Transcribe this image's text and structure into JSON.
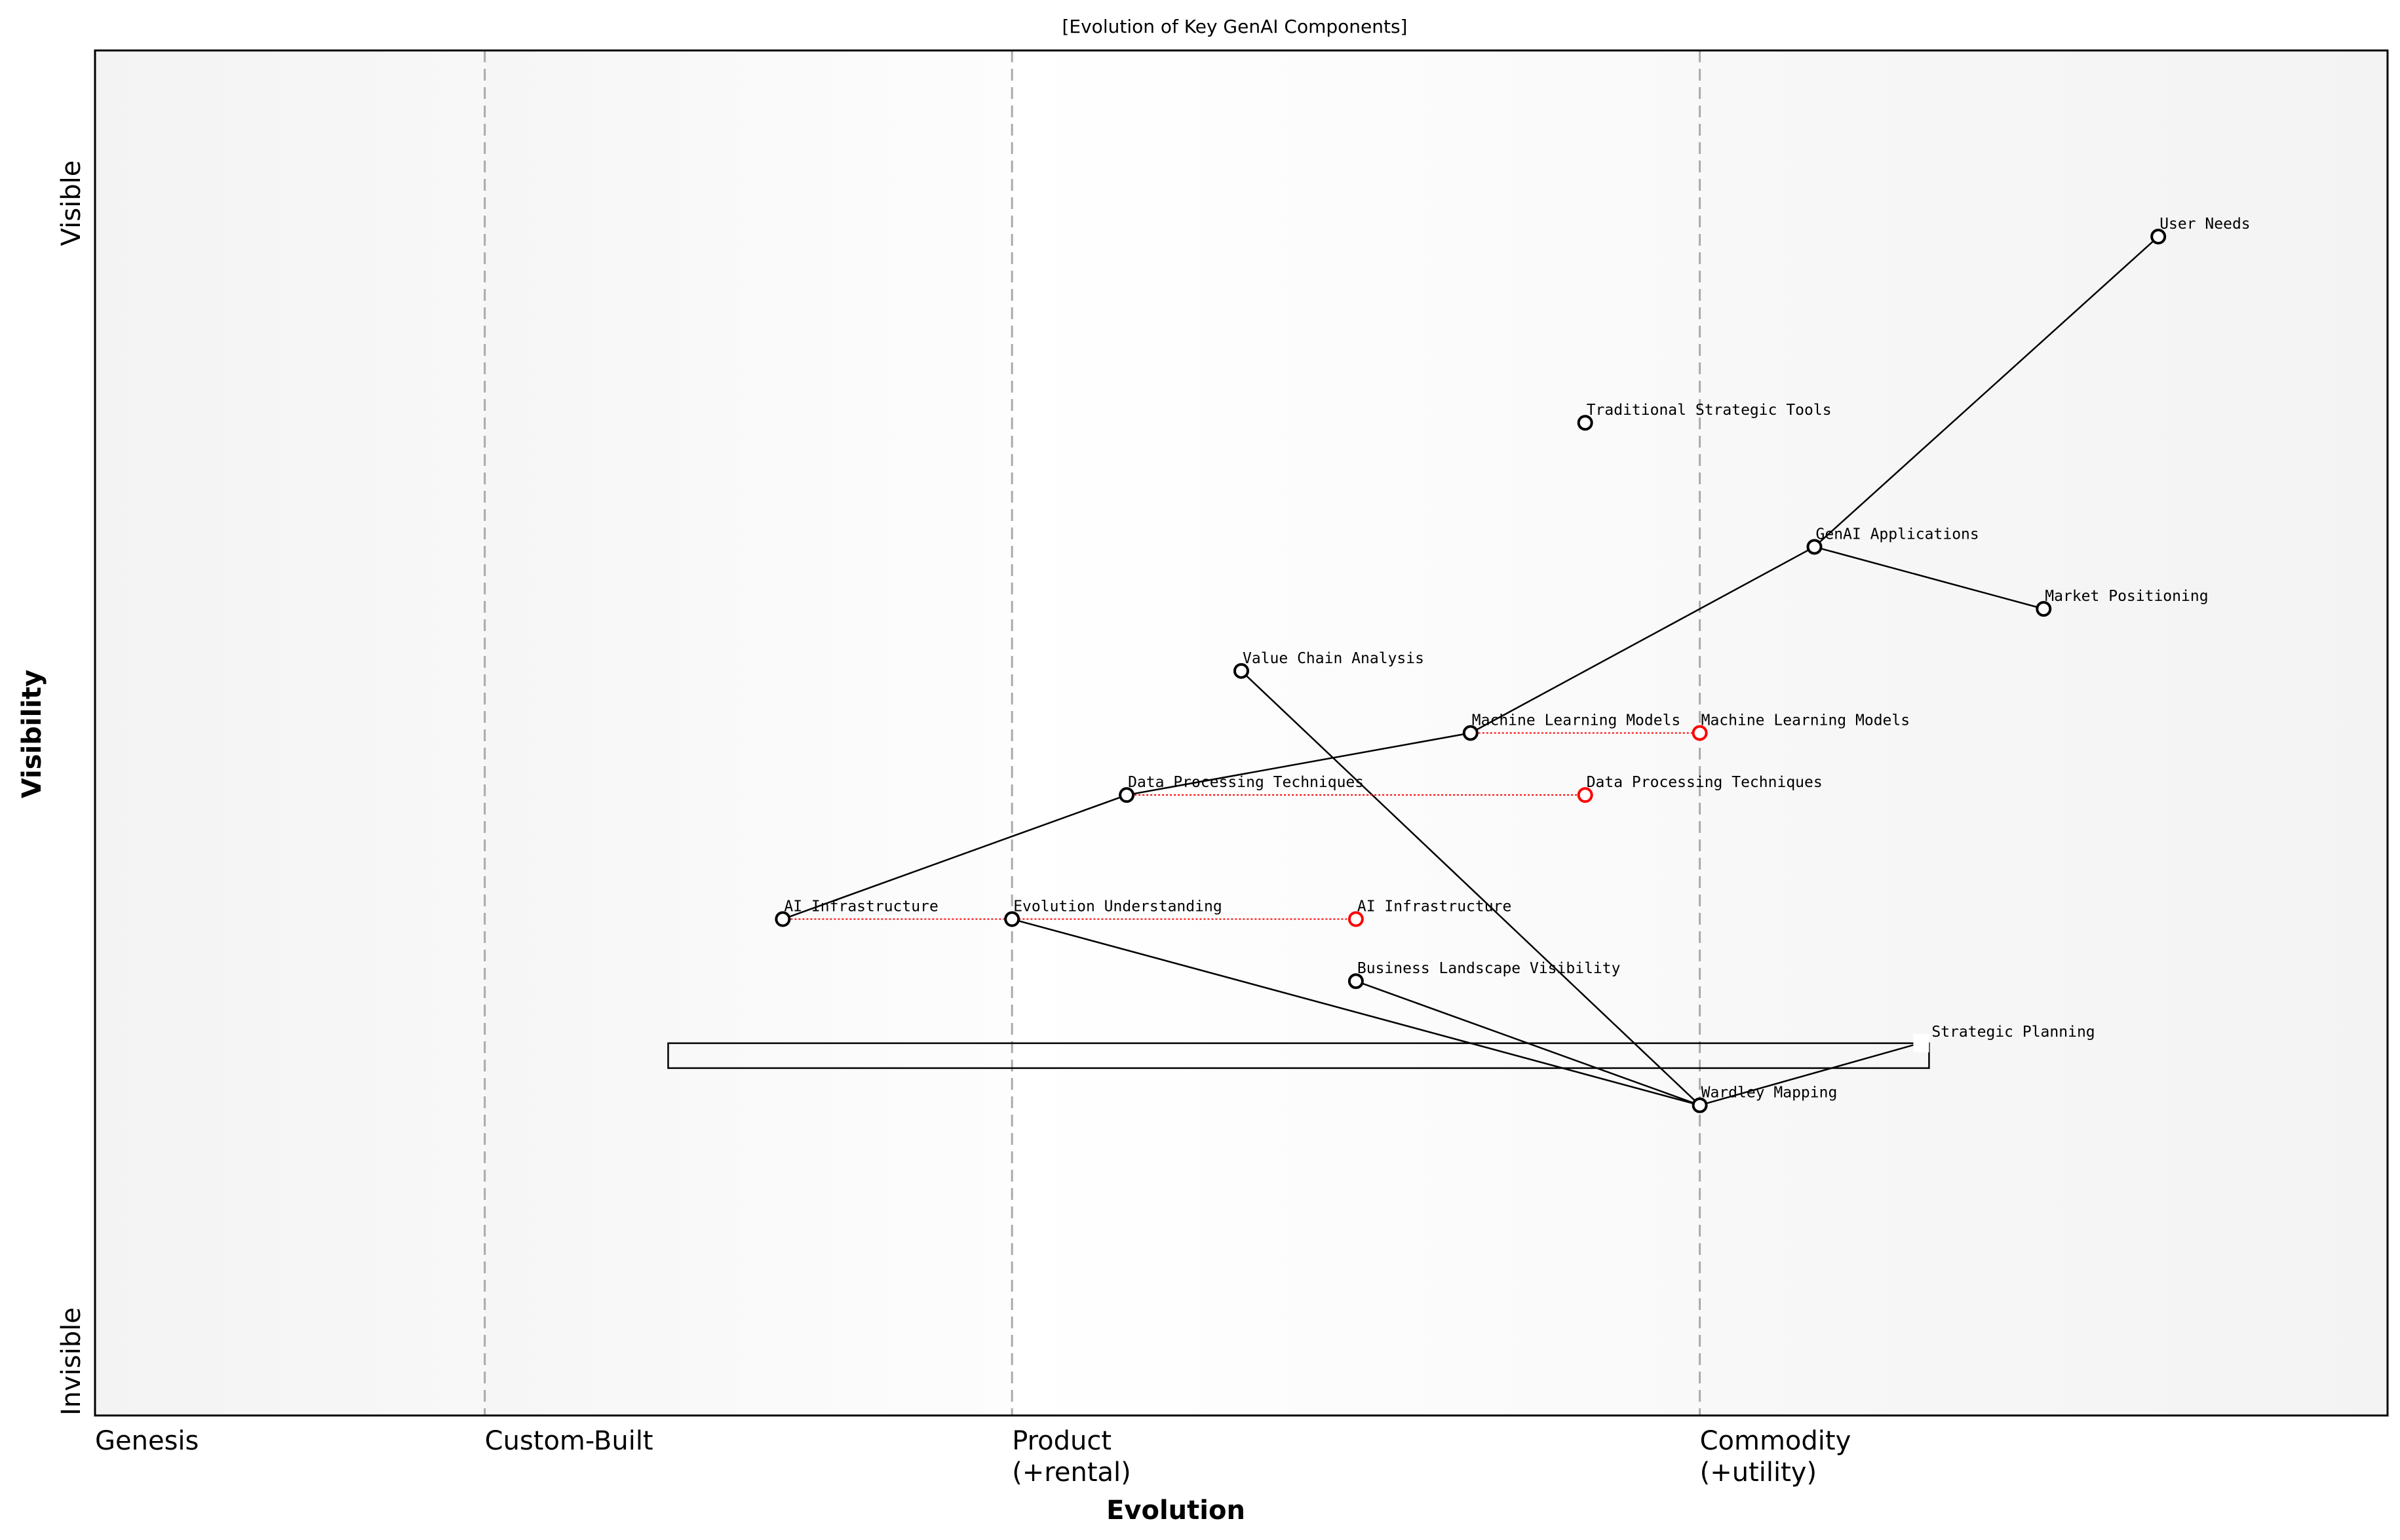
{
  "chart_data": {
    "type": "wardley-map",
    "title": "[Evolution of Key GenAI Components]",
    "xlabel": "Evolution",
    "ylabel": "Visibility",
    "xlim": [
      0,
      1
    ],
    "ylim": [
      0,
      1.1
    ],
    "y_ticks": [
      {
        "label": "Invisible",
        "value": 0
      },
      {
        "label": "Visible",
        "value": 1
      }
    ],
    "x_stages": [
      {
        "label": "Genesis",
        "value": 0
      },
      {
        "label": "Custom-Built",
        "value": 0.17
      },
      {
        "label": "Product\n(+rental)",
        "value": 0.4
      },
      {
        "label": "Commodity\n(+utility)",
        "value": 0.7
      }
    ],
    "components": [
      {
        "name": "User Needs",
        "evolution": 0.9,
        "visibility": 0.95
      },
      {
        "name": "Traditional Strategic Tools",
        "evolution": 0.65,
        "visibility": 0.8
      },
      {
        "name": "GenAI Applications",
        "evolution": 0.75,
        "visibility": 0.7
      },
      {
        "name": "Market Positioning",
        "evolution": 0.85,
        "visibility": 0.65
      },
      {
        "name": "Value Chain Analysis",
        "evolution": 0.5,
        "visibility": 0.6
      },
      {
        "name": "Machine Learning Models",
        "evolution": 0.6,
        "visibility": 0.55
      },
      {
        "name": "Data Processing Techniques",
        "evolution": 0.45,
        "visibility": 0.5
      },
      {
        "name": "AI Infrastructure",
        "evolution": 0.3,
        "visibility": 0.4
      },
      {
        "name": "Evolution Understanding",
        "evolution": 0.4,
        "visibility": 0.4
      },
      {
        "name": "Business Landscape Visibility",
        "evolution": 0.55,
        "visibility": 0.35
      },
      {
        "name": "Wardley Mapping",
        "evolution": 0.7,
        "visibility": 0.25
      }
    ],
    "pipeline": {
      "name": "Strategic Planning",
      "evolution_start": 0.25,
      "evolution_end": 0.8,
      "visibility": 0.3
    },
    "links": [
      [
        "User Needs",
        "GenAI Applications"
      ],
      [
        "GenAI Applications",
        "Market Positioning"
      ],
      [
        "GenAI Applications",
        "Machine Learning Models"
      ],
      [
        "Machine Learning Models",
        "Data Processing Techniques"
      ],
      [
        "Data Processing Techniques",
        "AI Infrastructure"
      ],
      [
        "Evolution Understanding",
        "Wardley Mapping"
      ],
      [
        "Business Landscape Visibility",
        "Wardley Mapping"
      ],
      [
        "Value Chain Analysis",
        "Wardley Mapping"
      ],
      [
        "Wardley Mapping",
        "Strategic Planning"
      ]
    ],
    "evolve": [
      {
        "name": "Machine Learning Models",
        "from": 0.6,
        "to": 0.7
      },
      {
        "name": "Data Processing Techniques",
        "from": 0.45,
        "to": 0.65
      },
      {
        "name": "AI Infrastructure",
        "from": 0.3,
        "to": 0.55
      }
    ],
    "colors": {
      "component": "#000000",
      "evolve": "#ff0000",
      "stage_line": "#aaaaaa",
      "zone_edge": "#f3f3f3"
    }
  }
}
